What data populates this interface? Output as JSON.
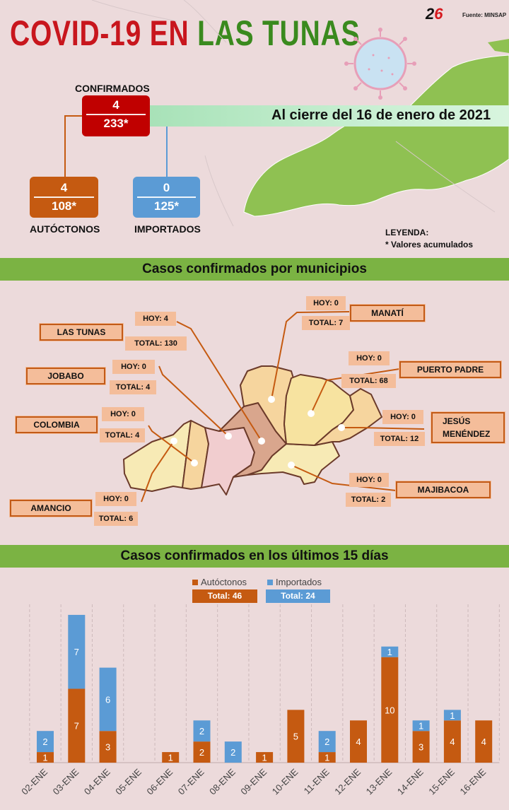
{
  "header": {
    "title_part1": "COVID-19 EN",
    "title_part2": "LAS TUNAS",
    "source": "Fuente: MINSAP",
    "logo_text_a": "2",
    "logo_text_b": "6",
    "date": "Al cierre del 16 de enero de 2021"
  },
  "summary": {
    "confirmados": {
      "label": "CONFIRMADOS",
      "today": "4",
      "total": "233*"
    },
    "autoctonos": {
      "label": "AUTÓCTONOS",
      "today": "4",
      "total": "108*"
    },
    "importados": {
      "label": "IMPORTADOS",
      "today": "0",
      "total": "125*"
    }
  },
  "legend": {
    "title": "LEYENDA:",
    "note": "* Valores acumulados"
  },
  "sections": {
    "municipios": "Casos confirmados por municipios",
    "days": "Casos confirmados en los últimos 15 días"
  },
  "municipios": [
    {
      "name": "LAS TUNAS",
      "hoy": "HOY: 4",
      "total": "TOTAL: 130"
    },
    {
      "name": "MANATÍ",
      "hoy": "HOY: 0",
      "total": "TOTAL: 7"
    },
    {
      "name": "PUERTO  PADRE",
      "hoy": "HOY: 0",
      "total": "TOTAL: 68"
    },
    {
      "name": "JOBABO",
      "hoy": "HOY: 0",
      "total": "TOTAL: 4"
    },
    {
      "name": "COLOMBIA",
      "hoy": "HOY: 0",
      "total": "TOTAL: 4"
    },
    {
      "name": "JESÚS MENÉNDEZ",
      "hoy": "HOY: 0",
      "total": "TOTAL: 12"
    },
    {
      "name": "MAJIBACOA",
      "hoy": "HOY: 0",
      "total": "TOTAL: 2"
    },
    {
      "name": "AMANCIO",
      "hoy": "HOY: 0",
      "total": "TOTAL: 6"
    }
  ],
  "colors": {
    "autoctonos": "#c55a11",
    "importados": "#5b9bd5",
    "confirmados": "#c00000",
    "band": "#7bb343"
  },
  "chart_data": {
    "type": "bar",
    "stacked": true,
    "categories": [
      "02-ENE",
      "03-ENE",
      "04-ENE",
      "05-ENE",
      "06-ENE",
      "07-ENE",
      "08-ENE",
      "09-ENE",
      "10-ENE",
      "11-ENE",
      "12-ENE",
      "13-ENE",
      "14-ENE",
      "15-ENE",
      "16-ENE"
    ],
    "series": [
      {
        "name": "Autóctonos",
        "total_label": "Total: 46",
        "values": [
          1,
          7,
          3,
          0,
          1,
          2,
          0,
          1,
          5,
          1,
          4,
          10,
          3,
          4,
          4
        ]
      },
      {
        "name": "Importados",
        "total_label": "Total: 24",
        "values": [
          2,
          7,
          6,
          0,
          0,
          2,
          2,
          0,
          0,
          2,
          0,
          1,
          1,
          1,
          0
        ]
      }
    ],
    "ylim": [
      0,
      15
    ],
    "grid": "vertical-dashed",
    "legend_position": "top-center"
  }
}
